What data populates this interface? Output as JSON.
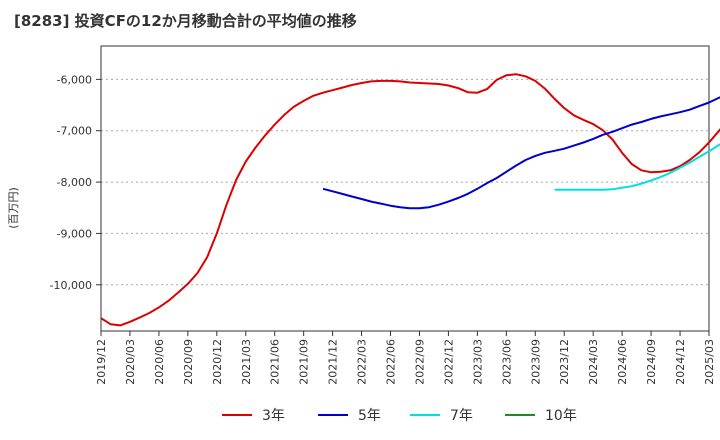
{
  "chart_data": {
    "type": "line",
    "title": "[8283]  投資CFの12か月移動合計の平均値の推移",
    "ylabel": "(百万円)",
    "ylim": [
      -10900,
      -5350
    ],
    "yticks": [
      -6000,
      -7000,
      -8000,
      -9000,
      -10000
    ],
    "ytick_labels": [
      "-6,000",
      "-7,000",
      "-8,000",
      "-9,000",
      "-10,000"
    ],
    "grid": true,
    "legend_position": "bottom",
    "x_start": "2019/12",
    "xtick_labels": [
      "2019/12",
      "2020/03",
      "2020/06",
      "2020/09",
      "2020/12",
      "2021/03",
      "2021/06",
      "2021/09",
      "2021/12",
      "2022/03",
      "2022/06",
      "2022/09",
      "2022/12",
      "2023/03",
      "2023/06",
      "2023/09",
      "2023/12",
      "2024/03",
      "2024/06",
      "2024/09",
      "2024/12",
      "2025/03"
    ],
    "series": [
      {
        "name": "3年",
        "color": "#dd0000",
        "start": "2019/12",
        "values": [
          -10650,
          -10770,
          -10790,
          -10720,
          -10640,
          -10550,
          -10440,
          -10310,
          -10150,
          -9980,
          -9770,
          -9460,
          -9000,
          -8440,
          -7960,
          -7600,
          -7330,
          -7090,
          -6880,
          -6690,
          -6530,
          -6420,
          -6320,
          -6260,
          -6210,
          -6160,
          -6110,
          -6070,
          -6040,
          -6030,
          -6030,
          -6040,
          -6060,
          -6070,
          -6080,
          -6090,
          -6120,
          -6170,
          -6250,
          -6260,
          -6190,
          -6010,
          -5920,
          -5900,
          -5940,
          -6030,
          -6180,
          -6380,
          -6560,
          -6700,
          -6790,
          -6870,
          -6990,
          -7170,
          -7430,
          -7650,
          -7770,
          -7810,
          -7800,
          -7770,
          -7690,
          -7570,
          -7420,
          -7230,
          -7010,
          -6790,
          -6560,
          -6320
        ]
      },
      {
        "name": "5年",
        "color": "#0000cc",
        "start": "2021/11",
        "values": [
          -8130,
          -8180,
          -8230,
          -8280,
          -8330,
          -8380,
          -8420,
          -8460,
          -8490,
          -8510,
          -8510,
          -8490,
          -8440,
          -8380,
          -8310,
          -8230,
          -8130,
          -8020,
          -7920,
          -7800,
          -7680,
          -7570,
          -7490,
          -7430,
          -7390,
          -7350,
          -7290,
          -7230,
          -7160,
          -7080,
          -7020,
          -6950,
          -6880,
          -6830,
          -6770,
          -6720,
          -6680,
          -6640,
          -6590,
          -6520,
          -6450,
          -6360,
          -6280,
          -6210,
          -6150,
          -6090,
          -5990,
          -5870,
          -5710,
          -5570
        ]
      },
      {
        "name": "7年",
        "color": "#00e0e0",
        "start": "2023/11",
        "values": [
          -8150,
          -8150,
          -8150,
          -8150,
          -8150,
          -8150,
          -8140,
          -8110,
          -8080,
          -8030,
          -7970,
          -7900,
          -7820,
          -7720,
          -7620,
          -7510,
          -7400,
          -7280,
          -7180
        ]
      },
      {
        "name": "10年",
        "color": "#228822",
        "start": "2024/12",
        "values": []
      }
    ]
  }
}
